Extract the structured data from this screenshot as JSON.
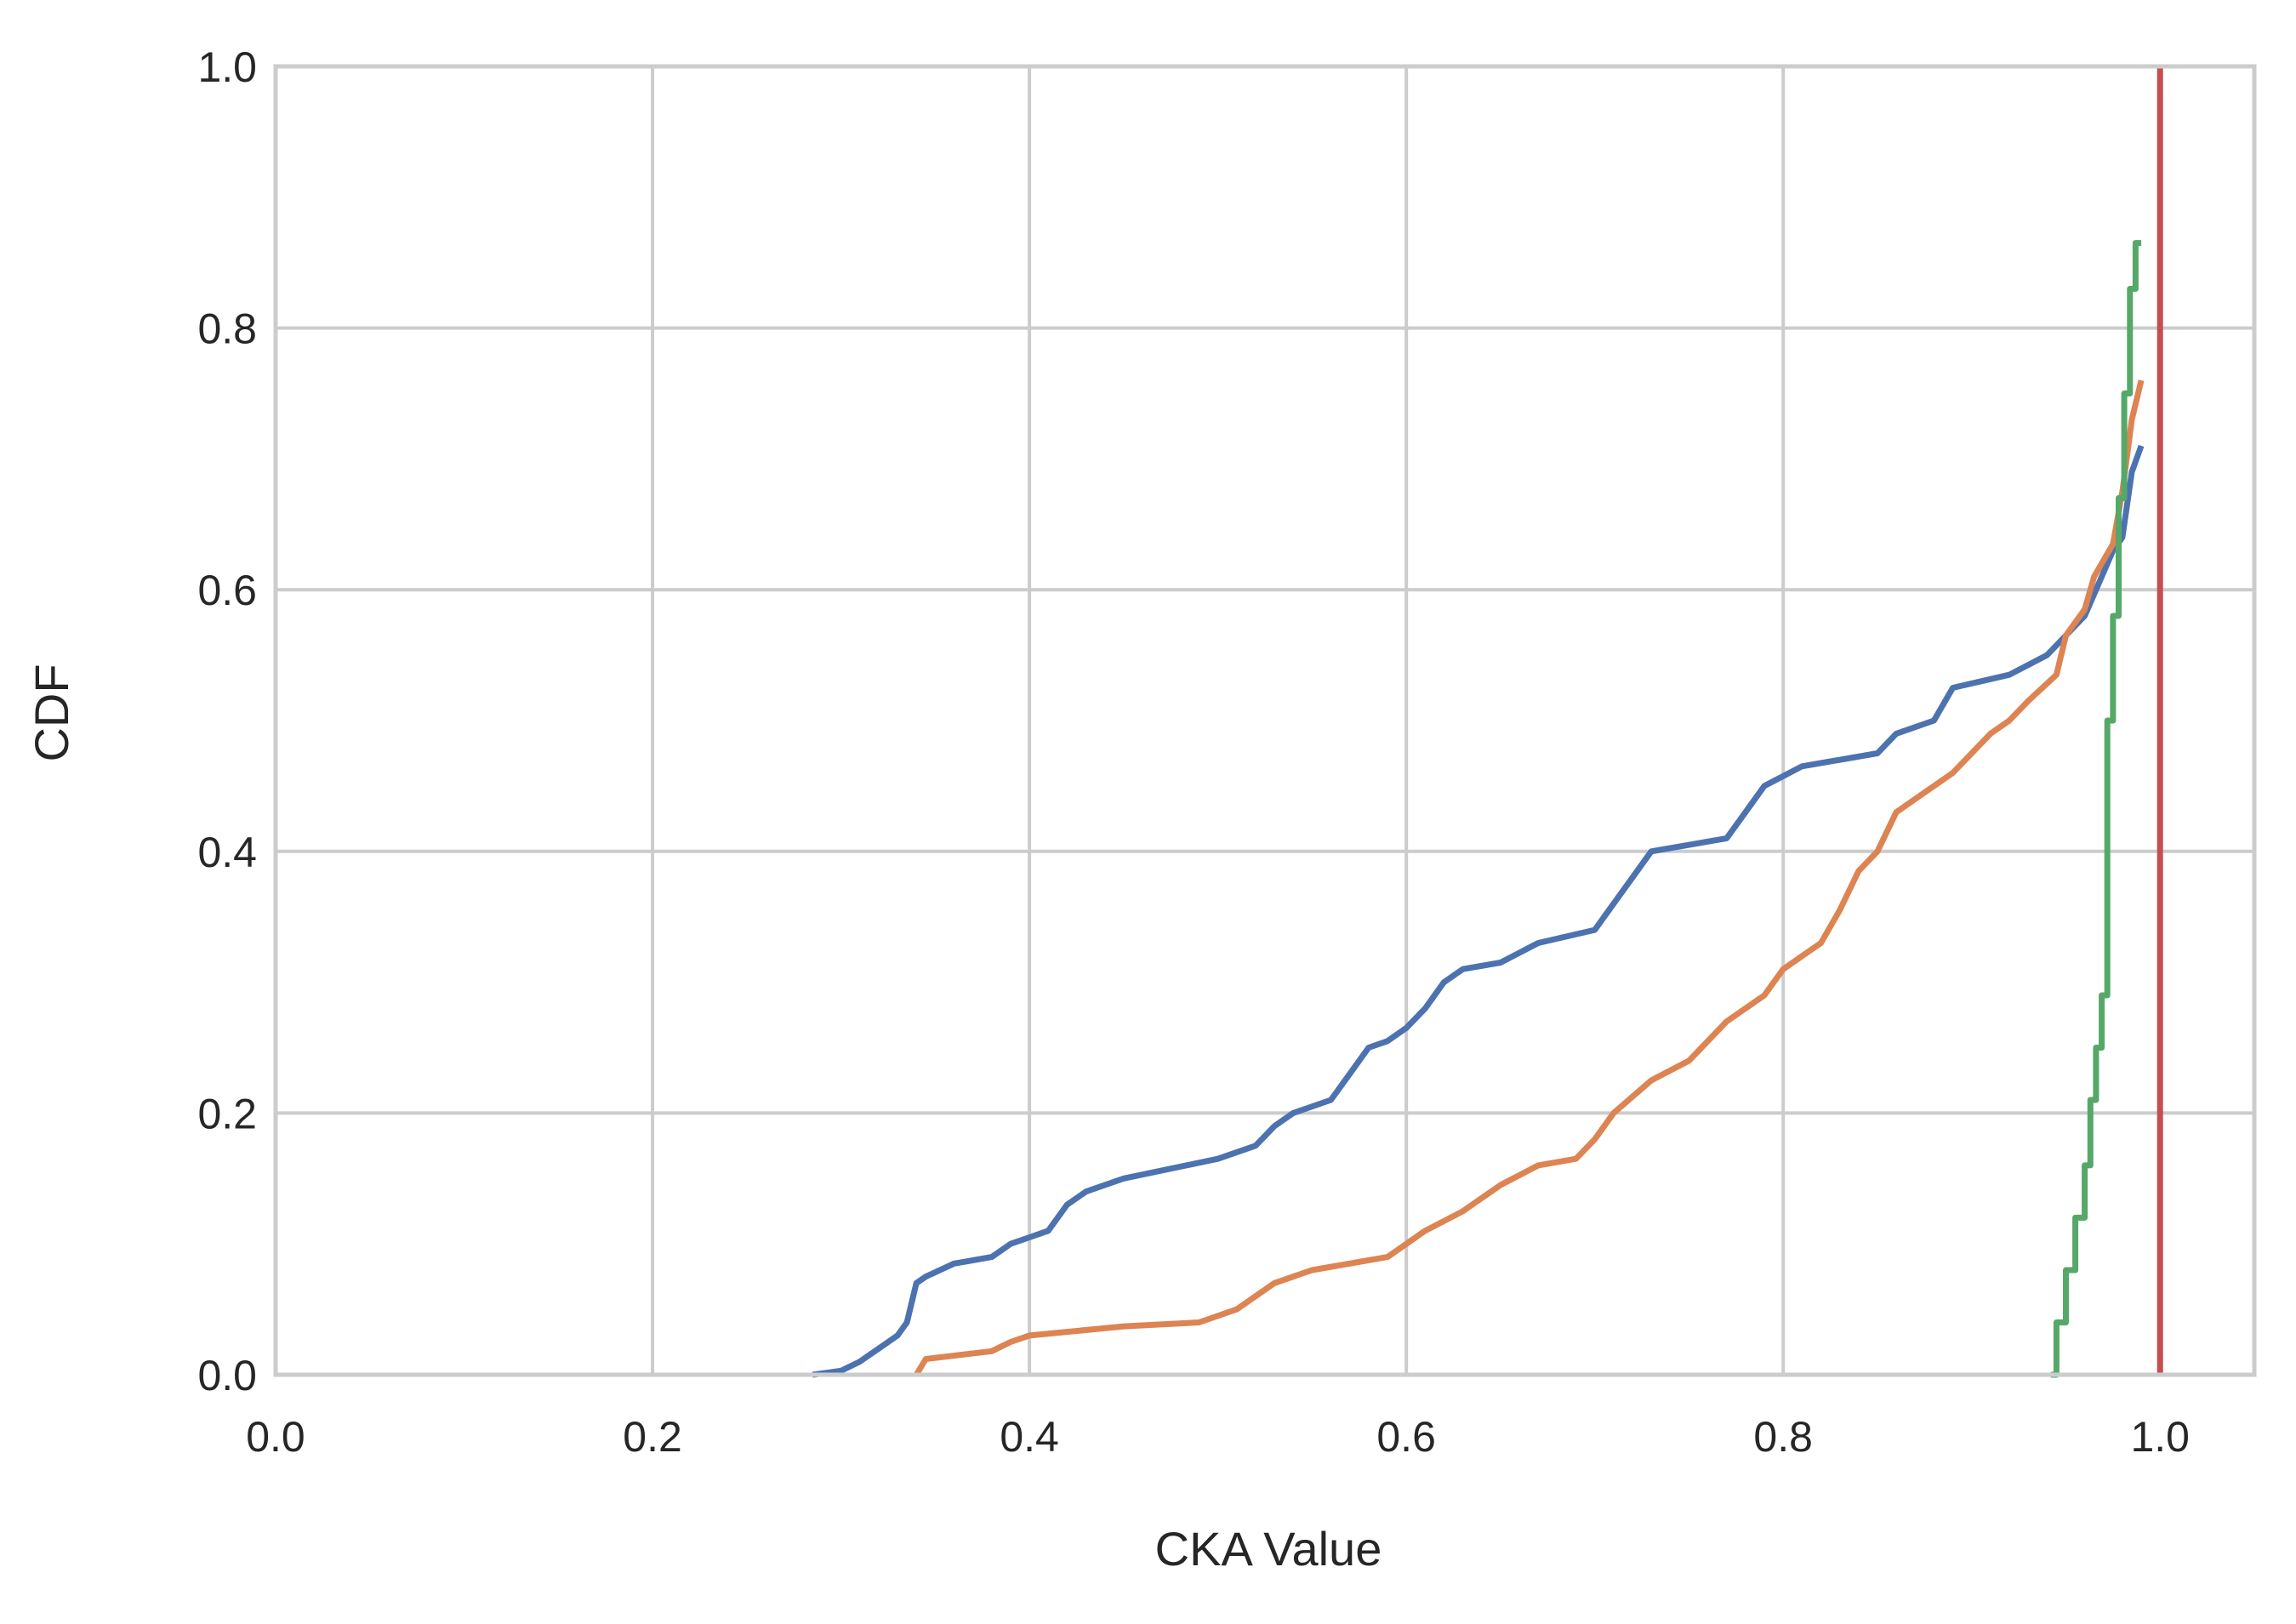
{
  "chart_data": {
    "type": "line",
    "title": "",
    "xlabel": "CKA Value",
    "ylabel": "CDF",
    "xlim": [
      0.0,
      1.05
    ],
    "ylim": [
      0.0,
      1.0
    ],
    "xticks": [
      "0.0",
      "0.2",
      "0.4",
      "0.6",
      "0.8",
      "1.0"
    ],
    "yticks": [
      "0.0",
      "0.2",
      "0.4",
      "0.6",
      "0.8",
      "1.0"
    ],
    "grid": true,
    "legend": "none",
    "colors": {
      "blue": "#4c72b0",
      "orange": "#dd8452",
      "green": "#55a868",
      "red": "#c44e52",
      "grid": "#cccccc",
      "axes": "#cccccc"
    },
    "series": [
      {
        "color": "#4c72b0",
        "step": false,
        "x": [
          0.285,
          0.3,
          0.31,
          0.32,
          0.33,
          0.335,
          0.34,
          0.345,
          0.36,
          0.38,
          0.39,
          0.4,
          0.41,
          0.42,
          0.43,
          0.45,
          0.5,
          0.52,
          0.53,
          0.54,
          0.56,
          0.57,
          0.58,
          0.59,
          0.6,
          0.61,
          0.62,
          0.63,
          0.65,
          0.67,
          0.7,
          0.71,
          0.72,
          0.73,
          0.77,
          0.78,
          0.79,
          0.81,
          0.85,
          0.86,
          0.88,
          0.89,
          0.92,
          0.94,
          0.95,
          0.96,
          0.975,
          0.98,
          0.985,
          0.99
        ],
        "y": [
          0.0,
          0.003,
          0.01,
          0.02,
          0.03,
          0.04,
          0.07,
          0.075,
          0.085,
          0.09,
          0.1,
          0.105,
          0.11,
          0.13,
          0.14,
          0.15,
          0.165,
          0.175,
          0.19,
          0.2,
          0.21,
          0.23,
          0.25,
          0.255,
          0.265,
          0.28,
          0.3,
          0.31,
          0.315,
          0.33,
          0.34,
          0.36,
          0.38,
          0.4,
          0.41,
          0.43,
          0.45,
          0.465,
          0.475,
          0.49,
          0.5,
          0.525,
          0.535,
          0.55,
          0.565,
          0.58,
          0.63,
          0.64,
          0.69,
          0.71
        ]
      },
      {
        "color": "#dd8452",
        "step": false,
        "x": [
          0.34,
          0.345,
          0.38,
          0.39,
          0.4,
          0.45,
          0.49,
          0.51,
          0.53,
          0.55,
          0.59,
          0.61,
          0.63,
          0.65,
          0.67,
          0.69,
          0.7,
          0.71,
          0.73,
          0.75,
          0.77,
          0.79,
          0.8,
          0.82,
          0.83,
          0.84,
          0.85,
          0.86,
          0.87,
          0.89,
          0.91,
          0.92,
          0.93,
          0.945,
          0.95,
          0.96,
          0.965,
          0.975,
          0.98,
          0.985,
          0.99
        ],
        "y": [
          0.0,
          0.012,
          0.018,
          0.025,
          0.03,
          0.037,
          0.04,
          0.05,
          0.07,
          0.08,
          0.09,
          0.11,
          0.125,
          0.145,
          0.16,
          0.165,
          0.18,
          0.2,
          0.225,
          0.24,
          0.27,
          0.29,
          0.31,
          0.33,
          0.355,
          0.385,
          0.4,
          0.43,
          0.44,
          0.46,
          0.49,
          0.5,
          0.515,
          0.535,
          0.565,
          0.585,
          0.61,
          0.635,
          0.675,
          0.73,
          0.76
        ]
      },
      {
        "color": "#55a868",
        "step": true,
        "x": [
          0.942,
          0.945,
          0.95,
          0.955,
          0.96,
          0.963,
          0.966,
          0.969,
          0.972,
          0.975,
          0.978,
          0.981,
          0.984,
          0.987
        ],
        "y": [
          0.0,
          0.04,
          0.08,
          0.12,
          0.16,
          0.21,
          0.25,
          0.29,
          0.5,
          0.58,
          0.67,
          0.75,
          0.83,
          0.865
        ]
      },
      {
        "color": "#c44e52",
        "step": false,
        "x": [
          1.0,
          1.0
        ],
        "y": [
          0.0,
          1.0
        ]
      }
    ]
  }
}
